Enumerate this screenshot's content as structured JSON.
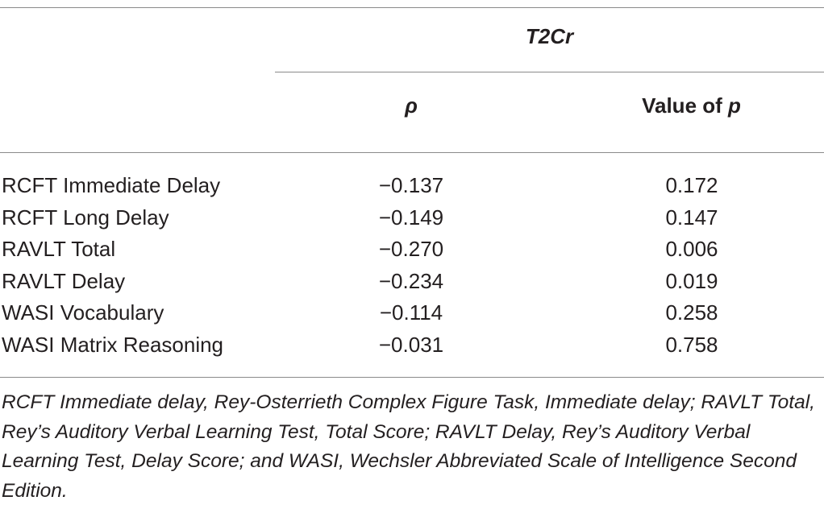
{
  "table": {
    "group_header": "T2Cr",
    "columns": {
      "rho": "ρ",
      "pvalue_prefix": "Value of ",
      "pvalue_var": "p"
    },
    "rows": [
      {
        "label": "RCFT Immediate Delay",
        "rho": "−0.137",
        "p": "0.172"
      },
      {
        "label": "RCFT Long Delay",
        "rho": "−0.149",
        "p": "0.147"
      },
      {
        "label": "RAVLT Total",
        "rho": "−0.270",
        "p": "0.006"
      },
      {
        "label": "RAVLT Delay",
        "rho": "−0.234",
        "p": "0.019"
      },
      {
        "label": "WASI Vocabulary",
        "rho": "−0.114",
        "p": "0.258"
      },
      {
        "label": "WASI Matrix Reasoning",
        "rho": "−0.031",
        "p": "0.758"
      }
    ],
    "footnote": "RCFT Immediate delay, Rey-Osterrieth Complex Figure Task, Immediate delay; RAVLT Total, Rey’s Auditory Verbal Learning Test, Total Score; RAVLT Delay, Rey’s Auditory Verbal Learning Test, Delay Score; and WASI, Wechsler Abbreviated Scale of Intelligence Second Edition."
  }
}
